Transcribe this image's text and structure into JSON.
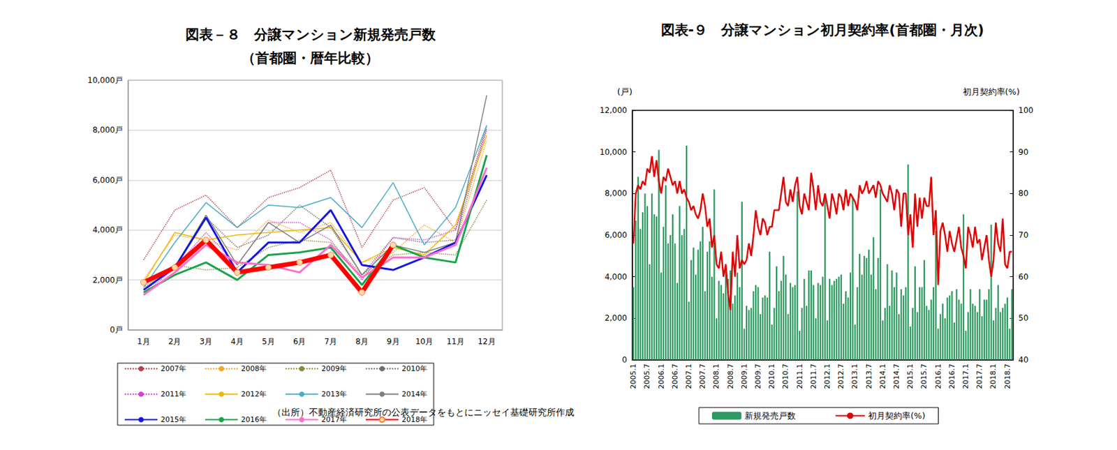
{
  "chart_data": [
    {
      "type": "line",
      "title": "図表－８　分譲マンション新規発売戸数\n（首都圏・暦年比較）",
      "note": "（出所）不動産経済研究所の公表データをもとにニッセイ基礎研究所作成",
      "categories": [
        "1月",
        "2月",
        "3月",
        "4月",
        "5月",
        "6月",
        "7月",
        "8月",
        "9月",
        "10月",
        "11月",
        "12月"
      ],
      "ylim": [
        0,
        10000
      ],
      "yticks": [
        {
          "value": 0,
          "label": "0戸"
        },
        {
          "value": 2000,
          "label": "2,000戸"
        },
        {
          "value": 4000,
          "label": "4,000戸"
        },
        {
          "value": 6000,
          "label": "6,000戸"
        },
        {
          "value": 8000,
          "label": "8,000戸"
        },
        {
          "value": 10000,
          "label": "10,000戸"
        }
      ],
      "grid": true,
      "legend": "bottom",
      "series": [
        {
          "name": "2007年",
          "color": "#b8404a",
          "line_style": "dotted",
          "values": [
            2800,
            4800,
            5400,
            4100,
            5300,
            5700,
            6400,
            3300,
            5200,
            5700,
            4000,
            8200
          ]
        },
        {
          "name": "2008年",
          "color": "#f5a623",
          "line_style": "dotted",
          "values": [
            2000,
            3800,
            3600,
            3200,
            4400,
            3900,
            4300,
            2700,
            3100,
            4200,
            3500,
            7600
          ]
        },
        {
          "name": "2009年",
          "color": "#8c8a3c",
          "line_style": "dotted",
          "values": [
            1500,
            2600,
            2400,
            2500,
            3300,
            3600,
            3500,
            2200,
            3000,
            3100,
            3000,
            5200
          ]
        },
        {
          "name": "2010年",
          "color": "#6f6f6f",
          "line_style": "dotted",
          "values": [
            1700,
            2500,
            4500,
            3300,
            3800,
            5000,
            4100,
            2200,
            3700,
            3500,
            3600,
            8100
          ]
        },
        {
          "name": "2011年",
          "color": "#d63fd6",
          "line_style": "dotted",
          "values": [
            1400,
            2500,
            3900,
            2600,
            4300,
            4300,
            3600,
            2000,
            3700,
            3600,
            4000,
            8000
          ]
        },
        {
          "name": "2012年",
          "color": "#f2b705",
          "line_style": "solid",
          "values": [
            1900,
            3900,
            3600,
            3800,
            3900,
            4000,
            4100,
            2700,
            3300,
            3000,
            4200,
            7800
          ]
        },
        {
          "name": "2013年",
          "color": "#4bacc6",
          "line_style": "solid",
          "values": [
            1700,
            3500,
            5100,
            4100,
            5000,
            4900,
            5300,
            4100,
            5900,
            3400,
            4900,
            8200
          ]
        },
        {
          "name": "2014年",
          "color": "#7f7f7f",
          "line_style": "solid",
          "values": [
            1900,
            2500,
            4600,
            2600,
            4300,
            3500,
            4200,
            2200,
            3400,
            3100,
            3500,
            9400
          ]
        },
        {
          "name": "2015年",
          "color": "#1515e0",
          "line_style": "solid",
          "values": [
            1600,
            2500,
            4500,
            2300,
            3500,
            3500,
            4800,
            2600,
            2400,
            2900,
            3500,
            6200
          ]
        },
        {
          "name": "2016年",
          "color": "#1aa34a",
          "line_style": "solid",
          "values": [
            1500,
            2200,
            2700,
            2000,
            3000,
            3100,
            3300,
            1800,
            3400,
            2900,
            2700,
            7000
          ]
        },
        {
          "name": "2017年",
          "color": "#ff6ec7",
          "line_style": "solid",
          "values": [
            1400,
            2300,
            3400,
            2700,
            2600,
            2300,
            3400,
            2100,
            2900,
            2900,
            3400,
            6500
          ]
        },
        {
          "name": "2018年",
          "color": "#ff0000",
          "line_style": "solid",
          "marker": "circle",
          "values": [
            1900,
            2500,
            3600,
            2300,
            2500,
            2700,
            3000,
            1500,
            3400,
            null,
            null,
            null
          ]
        }
      ]
    },
    {
      "type": "bar",
      "title": "図表-９　分譲マンション初月契約率(首都圏・月次)",
      "ylabel": "(戸)",
      "y2label": "初月契約率(%)",
      "categories": [
        "2005.1",
        null,
        null,
        null,
        null,
        null,
        "2005.7",
        null,
        null,
        null,
        null,
        null,
        "2006.1",
        null,
        null,
        null,
        null,
        null,
        "2006.7",
        null,
        null,
        null,
        null,
        null,
        "2007.1",
        null,
        null,
        null,
        null,
        null,
        "2007.7",
        null,
        null,
        null,
        null,
        null,
        "2008.1",
        null,
        null,
        null,
        null,
        null,
        "2008.7",
        null,
        null,
        null,
        null,
        null,
        "2009.1",
        null,
        null,
        null,
        null,
        null,
        "2009.7",
        null,
        null,
        null,
        null,
        null,
        "2010.1",
        null,
        null,
        null,
        null,
        null,
        "2010.7",
        null,
        null,
        null,
        null,
        null,
        "2011.1",
        null,
        null,
        null,
        null,
        null,
        "2011.7",
        null,
        null,
        null,
        null,
        null,
        "2012.1",
        null,
        null,
        null,
        null,
        null,
        "2012.7",
        null,
        null,
        null,
        null,
        null,
        "2013.1",
        null,
        null,
        null,
        null,
        null,
        "2013.7",
        null,
        null,
        null,
        null,
        null,
        "2014.1",
        null,
        null,
        null,
        null,
        null,
        "2014.7",
        null,
        null,
        null,
        null,
        null,
        "2015.1",
        null,
        null,
        null,
        null,
        null,
        "2015.7",
        null,
        null,
        null,
        null,
        null,
        "2016.1",
        null,
        null,
        null,
        null,
        null,
        "2016.7",
        null,
        null,
        null,
        null,
        null,
        "2017.1",
        null,
        null,
        null,
        null,
        null,
        "2017.7",
        null,
        null,
        null,
        null,
        null,
        "2018.1",
        null,
        null,
        null,
        null,
        null,
        "2018.7",
        null,
        null
      ],
      "ylim": [
        0,
        12000
      ],
      "yticks": [
        0,
        {
          "value": 2000,
          "label": "2,000"
        },
        {
          "value": 4000,
          "label": "4,000"
        },
        {
          "value": 6000,
          "label": "6,000"
        },
        {
          "value": 8000,
          "label": "8,000"
        },
        {
          "value": 10000,
          "label": "10,000"
        },
        {
          "value": 12000,
          "label": "12,000"
        }
      ],
      "y2lim": [
        40,
        100
      ],
      "y2ticks": [
        40,
        50,
        60,
        70,
        80,
        90,
        100
      ],
      "grid": false,
      "legend": "bottom",
      "series": [
        {
          "name": "新規発売戸数",
          "type": "bar",
          "color": "#2e9960",
          "values": [
            3500,
            6700,
            8800,
            6300,
            7100,
            8000,
            7400,
            4600,
            8000,
            7000,
            6900,
            10100,
            4200,
            6400,
            8400,
            5600,
            6000,
            7000,
            5600,
            3700,
            7400,
            6000,
            6300,
            10300,
            2800,
            4800,
            5400,
            4100,
            5300,
            5700,
            6400,
            3300,
            5200,
            5700,
            4000,
            8200,
            2000,
            3800,
            3600,
            3200,
            4400,
            3900,
            4300,
            2700,
            3100,
            4200,
            3500,
            7600,
            1500,
            2600,
            2400,
            2500,
            3300,
            3600,
            3500,
            2200,
            3000,
            3100,
            3000,
            5200,
            1700,
            2500,
            4500,
            3300,
            3800,
            5000,
            4100,
            2200,
            3700,
            3500,
            3600,
            8100,
            1400,
            2500,
            3900,
            2600,
            4300,
            4300,
            3600,
            2000,
            3700,
            3600,
            4000,
            8000,
            1900,
            3900,
            3600,
            3800,
            3900,
            4000,
            4100,
            2700,
            3300,
            3000,
            4200,
            7800,
            1700,
            3500,
            5100,
            4100,
            5000,
            4900,
            5300,
            4100,
            5900,
            3400,
            4900,
            8200,
            1900,
            2500,
            4600,
            2600,
            4300,
            3500,
            4200,
            2200,
            3400,
            3100,
            3500,
            9400,
            1600,
            2500,
            4500,
            2300,
            3500,
            3500,
            4800,
            2600,
            2400,
            2900,
            3500,
            6200,
            1500,
            2200,
            2700,
            2000,
            3000,
            3100,
            3300,
            1800,
            3400,
            2900,
            2700,
            7000,
            1400,
            2300,
            3400,
            2700,
            2600,
            2300,
            3400,
            2100,
            2900,
            2900,
            3400,
            6500,
            1900,
            2500,
            3600,
            2300,
            2500,
            2700,
            3000,
            1500,
            3400
          ]
        },
        {
          "name": "初月契約率(%)",
          "type": "line",
          "axis": "y2",
          "color": "#e00000",
          "values": [
            68,
            80,
            82,
            81,
            83,
            82,
            86,
            85,
            89,
            84,
            88,
            83,
            80,
            84,
            83,
            86,
            84,
            82,
            83,
            80,
            83,
            80,
            81,
            79,
            78,
            76,
            77,
            75,
            74,
            76,
            80,
            77,
            72,
            74,
            67,
            70,
            63,
            62,
            66,
            60,
            63,
            56,
            52,
            66,
            60,
            70,
            62,
            64,
            63,
            64,
            68,
            65,
            70,
            76,
            72,
            70,
            74,
            73,
            70,
            72,
            72,
            76,
            76,
            76,
            80,
            84,
            78,
            77,
            81,
            78,
            82,
            84,
            77,
            75,
            80,
            78,
            76,
            85,
            81,
            76,
            82,
            78,
            77,
            80,
            77,
            74,
            80,
            78,
            75,
            80,
            79,
            76,
            81,
            77,
            80,
            79,
            78,
            76,
            82,
            80,
            81,
            83,
            80,
            81,
            82,
            79,
            83,
            82,
            80,
            79,
            78,
            82,
            80,
            76,
            81,
            80,
            72,
            80,
            80,
            70,
            75,
            67,
            80,
            72,
            79,
            74,
            79,
            77,
            77,
            84,
            70,
            76,
            58,
            71,
            73,
            70,
            66,
            71,
            68,
            66,
            69,
            72,
            67,
            65,
            62,
            72,
            70,
            67,
            72,
            68,
            69,
            64,
            67,
            70,
            64,
            60,
            64,
            73,
            68,
            66,
            74,
            63,
            62,
            66,
            66
          ]
        }
      ]
    }
  ]
}
